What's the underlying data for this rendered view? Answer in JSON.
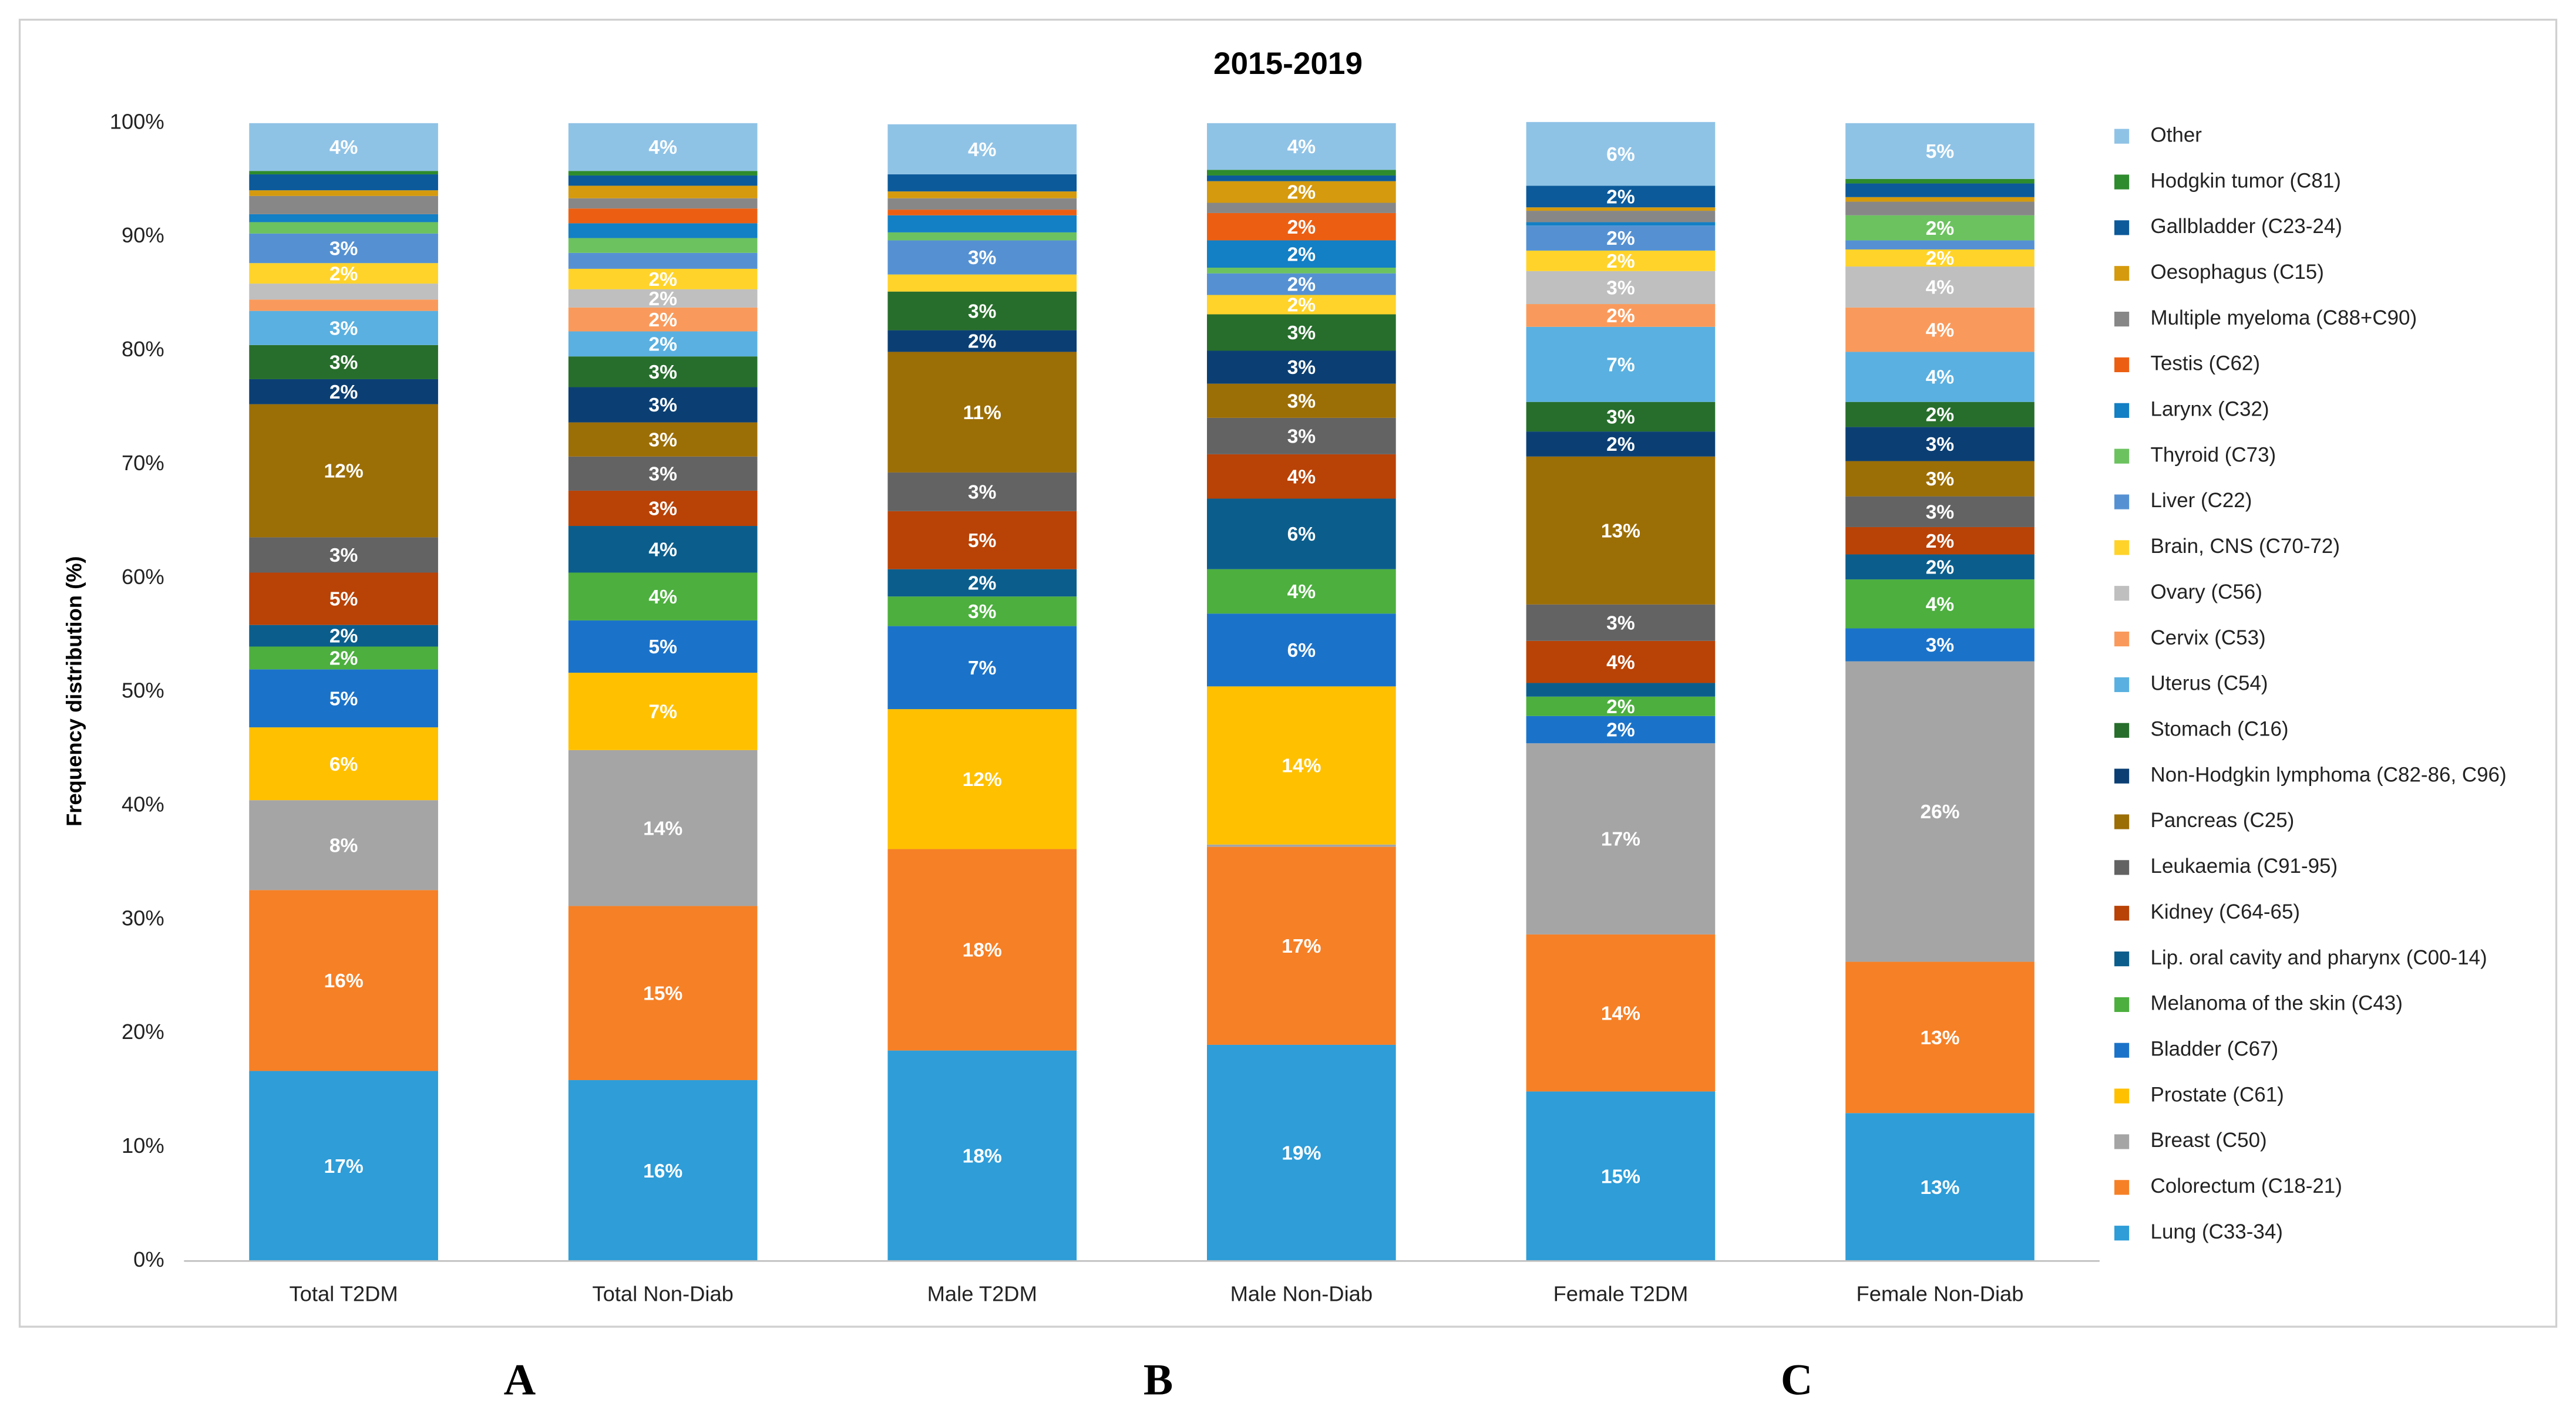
{
  "chart_data": {
    "type": "stacked_bar",
    "title": "2015-2019",
    "y_label": "Frequency distribution (%)",
    "categories": [
      "Total T2DM",
      "Total Non-Diab",
      "Male T2DM",
      "Male Non-Diab",
      "Female T2DM",
      "Female Non-Diab"
    ],
    "ylim": [
      0,
      100
    ],
    "yticks": [
      {
        "value": 0,
        "label": "0%"
      },
      {
        "value": 10,
        "label": "10%"
      },
      {
        "value": 20,
        "label": "20%"
      },
      {
        "value": 30,
        "label": "30%"
      },
      {
        "value": 40,
        "label": "40%"
      },
      {
        "value": 50,
        "label": "50%"
      },
      {
        "value": 60,
        "label": "60%"
      },
      {
        "value": 70,
        "label": "70%"
      },
      {
        "value": 80,
        "label": "80%"
      },
      {
        "value": 90,
        "label": "90%"
      },
      {
        "value": 100,
        "label": "100%"
      }
    ],
    "grid": false,
    "legend": "right",
    "series": [
      {
        "name": "Lung (C33-34)",
        "color": "#2e9dd8",
        "values": [
          16.7,
          15.9,
          18.5,
          19.0,
          14.9,
          13.0
        ],
        "value_labels": [
          "17%",
          "16%",
          "18%",
          "19%",
          "15%",
          "13%"
        ]
      },
      {
        "name": "Colorectum (C18-21)",
        "color": "#f68026",
        "values": [
          15.9,
          15.3,
          17.7,
          17.4,
          13.8,
          13.3
        ],
        "value_labels": [
          "16%",
          "15%",
          "18%",
          "17%",
          "14%",
          "13%"
        ]
      },
      {
        "name": "Breast (C50)",
        "color": "#a5a5a5",
        "values": [
          7.9,
          13.7,
          0,
          0.2,
          16.8,
          26.4
        ],
        "value_labels": [
          "8%",
          "14%",
          null,
          null,
          "17%",
          "26%"
        ]
      },
      {
        "name": "Prostate (C61)",
        "color": "#ffc000",
        "values": [
          6.4,
          6.8,
          12.3,
          13.9,
          0,
          0
        ],
        "value_labels": [
          "6%",
          "7%",
          "12%",
          "14%",
          null,
          null
        ]
      },
      {
        "name": "Bladder (C67)",
        "color": "#1b73c9",
        "values": [
          5.1,
          4.6,
          7.3,
          6.4,
          2.4,
          2.9
        ],
        "value_labels": [
          "5%",
          "5%",
          "7%",
          "6%",
          "2%",
          "3%"
        ]
      },
      {
        "name": "Melanoma of the skin (C43)",
        "color": "#4caf3e",
        "values": [
          2.0,
          4.2,
          2.6,
          3.9,
          1.7,
          4.3
        ],
        "value_labels": [
          "2%",
          "4%",
          "3%",
          "4%",
          "2%",
          "4%"
        ]
      },
      {
        "name": "Lip. oral cavity and pharynx (C00-14)",
        "color": "#0b5e8c",
        "values": [
          1.9,
          4.1,
          2.4,
          6.2,
          1.2,
          2.2
        ],
        "value_labels": [
          "2%",
          "4%",
          "2%",
          "6%",
          null,
          "2%"
        ]
      },
      {
        "name": "Kidney (C64-65)",
        "color": "#b94206",
        "values": [
          4.6,
          3.1,
          5.1,
          3.9,
          3.7,
          2.4
        ],
        "value_labels": [
          "5%",
          "3%",
          "5%",
          "4%",
          "4%",
          "2%"
        ]
      },
      {
        "name": "Leukaemia (C91-95)",
        "color": "#636363",
        "values": [
          3.1,
          3.0,
          3.4,
          3.2,
          3.2,
          2.7
        ],
        "value_labels": [
          "3%",
          "3%",
          "3%",
          "3%",
          "3%",
          "3%"
        ]
      },
      {
        "name": "Pancreas (C25)",
        "color": "#9c6e06",
        "values": [
          11.7,
          3.0,
          10.6,
          3.0,
          13.0,
          3.1
        ],
        "value_labels": [
          "12%",
          "3%",
          "11%",
          "3%",
          "13%",
          "3%"
        ]
      },
      {
        "name": "Non-Hodgkin lymphoma (C82-86, C96)",
        "color": "#0b3f73",
        "values": [
          2.2,
          3.1,
          1.9,
          2.9,
          2.2,
          3.0
        ],
        "value_labels": [
          "2%",
          "3%",
          "2%",
          "3%",
          "2%",
          "3%"
        ]
      },
      {
        "name": "Stomach (C16)",
        "color": "#276e2c",
        "values": [
          3.0,
          2.7,
          3.4,
          3.2,
          2.6,
          2.2
        ],
        "value_labels": [
          "3%",
          "3%",
          "3%",
          "3%",
          "3%",
          "2%"
        ]
      },
      {
        "name": "Uterus (C54)",
        "color": "#5ab0e0",
        "values": [
          3.0,
          2.2,
          0,
          0,
          6.6,
          4.4
        ],
        "value_labels": [
          "3%",
          "2%",
          null,
          null,
          "7%",
          "4%"
        ]
      },
      {
        "name": "Cervix (C53)",
        "color": "#f99a5c",
        "values": [
          1.0,
          2.1,
          0,
          0,
          2.0,
          3.9
        ],
        "value_labels": [
          null,
          "2%",
          null,
          null,
          "2%",
          "4%"
        ]
      },
      {
        "name": "Ovary (C56)",
        "color": "#bfbfbf",
        "values": [
          1.4,
          1.6,
          0,
          0,
          2.9,
          3.6
        ],
        "value_labels": [
          null,
          "2%",
          null,
          null,
          "3%",
          "4%"
        ]
      },
      {
        "name": "Brain, CNS (C70-72)",
        "color": "#ffd32a",
        "values": [
          1.8,
          1.8,
          1.5,
          1.7,
          1.8,
          1.5
        ],
        "value_labels": [
          "2%",
          "2%",
          null,
          "2%",
          "2%",
          "2%"
        ]
      },
      {
        "name": "Liver (C22)",
        "color": "#5591d2",
        "values": [
          2.6,
          1.4,
          3.0,
          1.9,
          2.2,
          0.8
        ],
        "value_labels": [
          "3%",
          null,
          "3%",
          "2%",
          "2%",
          null
        ]
      },
      {
        "name": "Thyroid (C73)",
        "color": "#6cc25f",
        "values": [
          1.0,
          1.3,
          0.7,
          0.5,
          0,
          2.2
        ],
        "value_labels": [
          null,
          null,
          null,
          null,
          null,
          "2%"
        ]
      },
      {
        "name": "Larynx (C32)",
        "color": "#137fc4",
        "values": [
          0.7,
          1.3,
          1.5,
          2.4,
          0.3,
          0
        ],
        "value_labels": [
          null,
          null,
          null,
          "2%",
          null,
          null
        ]
      },
      {
        "name": "Testis (C62)",
        "color": "#ec5f13",
        "values": [
          0,
          1.3,
          0.5,
          2.4,
          0,
          0
        ],
        "value_labels": [
          null,
          null,
          null,
          "2%",
          null,
          null
        ]
      },
      {
        "name": "Multiple myeloma (C88+C90)",
        "color": "#878787",
        "values": [
          1.6,
          0.9,
          1.0,
          0.9,
          1.0,
          1.2
        ],
        "value_labels": [
          null,
          null,
          null,
          null,
          null,
          null
        ]
      },
      {
        "name": "Oesophagus (C15)",
        "color": "#d59a0d",
        "values": [
          0.5,
          1.1,
          0.6,
          1.9,
          0.3,
          0.4
        ],
        "value_labels": [
          null,
          null,
          null,
          "2%",
          null,
          null
        ]
      },
      {
        "name": "Gallbladder (C23-24)",
        "color": "#0c5a9a",
        "values": [
          1.4,
          0.9,
          1.5,
          0.5,
          1.9,
          1.2
        ],
        "value_labels": [
          null,
          null,
          null,
          null,
          "2%",
          null
        ]
      },
      {
        "name": "Hodgkin tumor (C81)",
        "color": "#2e8b2e",
        "values": [
          0.3,
          0.4,
          0,
          0.5,
          0,
          0.4
        ],
        "value_labels": [
          null,
          null,
          null,
          null,
          null,
          null
        ]
      },
      {
        "name": "Other",
        "color": "#8fc3e6",
        "values": [
          4.2,
          4.2,
          4.4,
          4.1,
          5.6,
          4.9
        ],
        "value_labels": [
          "4%",
          "4%",
          "4%",
          "4%",
          "6%",
          "5%"
        ]
      }
    ],
    "annotations": [
      "A",
      "B",
      "C"
    ]
  }
}
